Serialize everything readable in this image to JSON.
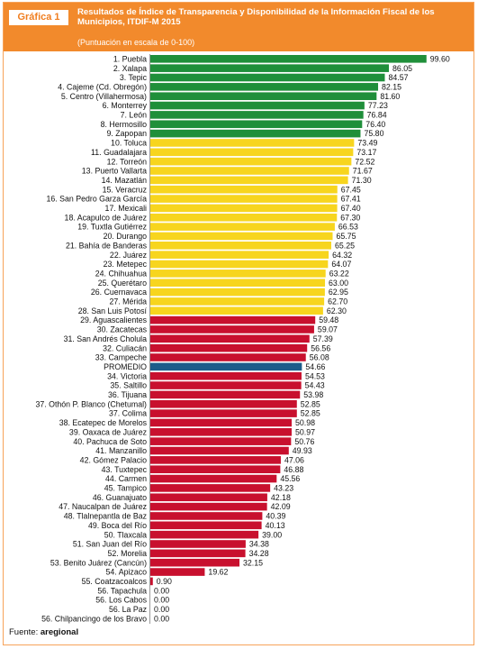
{
  "header": {
    "badge": "Gráfica 1",
    "title": "Resultados de Índice de Transparencia y Disponibilidad de la Información Fiscal de los Municipios, ITDIF-M 2015",
    "subtitle": "(Puntuación en escala de 0-100)"
  },
  "source": {
    "label": "Fuente:",
    "name": "aregional"
  },
  "colors": {
    "green": "#1f8f3a",
    "yellow": "#f7d51e",
    "red": "#c8102e",
    "blue": "#1d5c8a",
    "header": "#f28a2c"
  },
  "chart_data": {
    "type": "bar",
    "orientation": "horizontal",
    "xlim": [
      0,
      100
    ],
    "categories": [
      "1. Puebla",
      "2. Xalapa",
      "3. Tepic",
      "4. Cajeme (Cd. Obregón)",
      "5. Centro (Villahermosa)",
      "6. Monterrey",
      "7. León",
      "8. Hermosillo",
      "9. Zapopan",
      "10. Toluca",
      "11. Guadalajara",
      "12. Torreón",
      "13. Puerto Vallarta",
      "14. Mazatlán",
      "15. Veracruz",
      "16. San Pedro Garza García",
      "17. Mexicali",
      "18. Acapulco de Juárez",
      "19. Tuxtla Gutiérrez",
      "20. Durango",
      "21. Bahía de Banderas",
      "22. Juárez",
      "23. Metepec",
      "24. Chihuahua",
      "25. Querétaro",
      "26. Cuernavaca",
      "27. Mérida",
      "28. San Luis Potosí",
      "29. Aguascalientes",
      "30. Zacatecas",
      "31. San Andrés Cholula",
      "32. Culiacán",
      "33. Campeche",
      "PROMEDIO",
      "34. Victoria",
      "35. Saltillo",
      "36. Tijuana",
      "37. Othón P. Blanco (Chetumal)",
      "37. Colima",
      "38. Ecatepec de Morelos",
      "39. Oaxaca de Juárez",
      "40. Pachuca de Soto",
      "41. Manzanillo",
      "42. Gómez Palacio",
      "43. Tuxtepec",
      "44. Carmen",
      "45. Tampico",
      "46. Guanajuato",
      "47. Naucalpan de Juárez",
      "48. Tlalnepantla de Baz",
      "49. Boca del Río",
      "50. Tlaxcala",
      "51. San Juan del Río",
      "52. Morelia",
      "53. Benito Juárez (Cancún)",
      "54. Apizaco",
      "55. Coatzacoalcos",
      "56. Tapachula",
      "56. Los Cabos",
      "56. La Paz",
      "56. Chilpancingo de los Bravo"
    ],
    "values": [
      99.6,
      86.05,
      84.57,
      82.15,
      81.6,
      77.23,
      76.84,
      76.4,
      75.8,
      73.49,
      73.17,
      72.52,
      71.67,
      71.3,
      67.45,
      67.41,
      67.4,
      67.3,
      66.53,
      65.75,
      65.25,
      64.32,
      64.07,
      63.22,
      63.0,
      62.95,
      62.7,
      62.3,
      59.48,
      59.07,
      57.39,
      56.56,
      56.08,
      54.66,
      54.53,
      54.43,
      53.98,
      52.85,
      52.85,
      50.98,
      50.97,
      50.76,
      49.93,
      47.06,
      46.88,
      45.56,
      43.23,
      42.18,
      42.09,
      40.39,
      40.13,
      39.0,
      34.38,
      34.28,
      32.15,
      19.62,
      0.9,
      0.0,
      0.0,
      0.0,
      0.0
    ],
    "value_labels": [
      "99.60",
      "86.05",
      "84.57",
      "82.15",
      "81.60",
      "77.23",
      "76.84",
      "76.40",
      "75.80",
      "73.49",
      "73.17",
      "72.52",
      "71.67",
      "71.30",
      "67.45",
      "67.41",
      "67.40",
      "67.30",
      "66.53",
      "65.75",
      "65.25",
      "64.32",
      "64.07",
      "63.22",
      "63.00",
      "62.95",
      "62.70",
      "62.30",
      "59.48",
      "59.07",
      "57.39",
      "56.56",
      "56.08",
      "54.66",
      "54.53",
      "54.43",
      "53.98",
      "52.85",
      "52.85",
      "50.98",
      "50.97",
      "50.76",
      "49.93",
      "47.06",
      "46.88",
      "45.56",
      "43.23",
      "42.18",
      "42.09",
      "40.39",
      "40.13",
      "39.00",
      "34.38",
      "34.28",
      "32.15",
      "19.62",
      "0.90",
      "0.00",
      "0.00",
      "0.00",
      "0.00"
    ],
    "bar_colors": [
      "green",
      "green",
      "green",
      "green",
      "green",
      "green",
      "green",
      "green",
      "green",
      "yellow",
      "yellow",
      "yellow",
      "yellow",
      "yellow",
      "yellow",
      "yellow",
      "yellow",
      "yellow",
      "yellow",
      "yellow",
      "yellow",
      "yellow",
      "yellow",
      "yellow",
      "yellow",
      "yellow",
      "yellow",
      "yellow",
      "red",
      "red",
      "red",
      "red",
      "red",
      "blue",
      "red",
      "red",
      "red",
      "red",
      "red",
      "red",
      "red",
      "red",
      "red",
      "red",
      "red",
      "red",
      "red",
      "red",
      "red",
      "red",
      "red",
      "red",
      "red",
      "red",
      "red",
      "red",
      "red",
      "red",
      "red",
      "red",
      "red"
    ],
    "grid": false,
    "legend": "none"
  }
}
